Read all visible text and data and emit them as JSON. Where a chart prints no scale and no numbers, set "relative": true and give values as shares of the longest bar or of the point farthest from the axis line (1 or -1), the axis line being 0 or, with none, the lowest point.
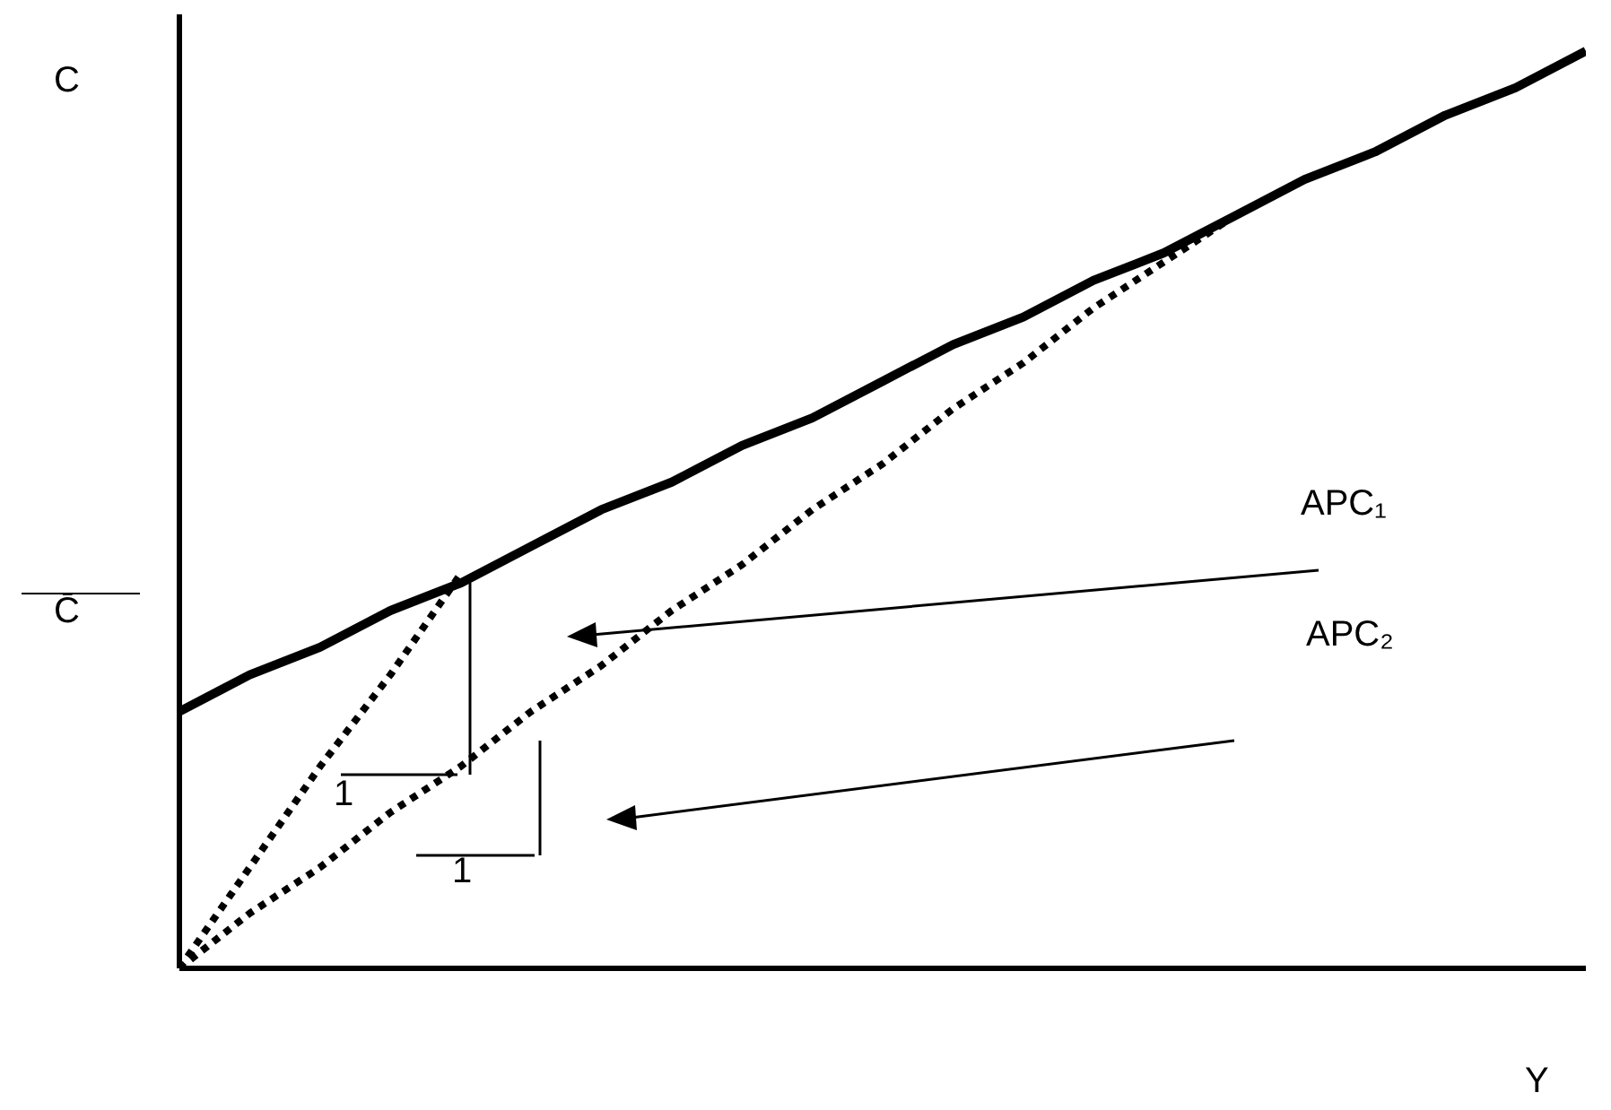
{
  "chart_data": {
    "type": "line",
    "relative": true,
    "xlabel": "Y",
    "ylabel": "C",
    "categories": [
      null,
      null,
      null,
      null,
      null,
      null,
      null,
      null,
      null,
      null,
      null,
      null,
      null,
      null,
      null,
      null,
      null,
      null,
      null,
      null,
      null
    ],
    "series": [
      {
        "color": "#000000",
        "line_style": "solid",
        "values": [
          0.28,
          0.32,
          0.35,
          0.39,
          0.42,
          0.46,
          0.5,
          0.53,
          0.57,
          0.6,
          0.64,
          0.68,
          0.71,
          0.75,
          0.78,
          0.82,
          0.86,
          0.89,
          0.93,
          0.96,
          1
        ]
      },
      {
        "color": "#000000",
        "line_style": "dotted",
        "values": [
          0,
          0.11,
          0.22,
          0.32,
          0.43,
          null,
          null,
          null,
          null,
          null,
          null,
          null,
          null,
          null,
          null,
          null,
          null,
          null,
          null,
          null,
          null
        ]
      },
      {
        "color": "#000000",
        "line_style": "dotted",
        "values": [
          0,
          0.06,
          0.11,
          0.17,
          0.22,
          0.28,
          0.33,
          0.39,
          0.44,
          0.5,
          0.55,
          0.61,
          0.66,
          0.72,
          0.77,
          0.82,
          null,
          null,
          null,
          null,
          null
        ]
      }
    ],
    "annotations": [
      "C̄",
      "APC₁",
      "APC₂",
      "1",
      "1"
    ]
  }
}
